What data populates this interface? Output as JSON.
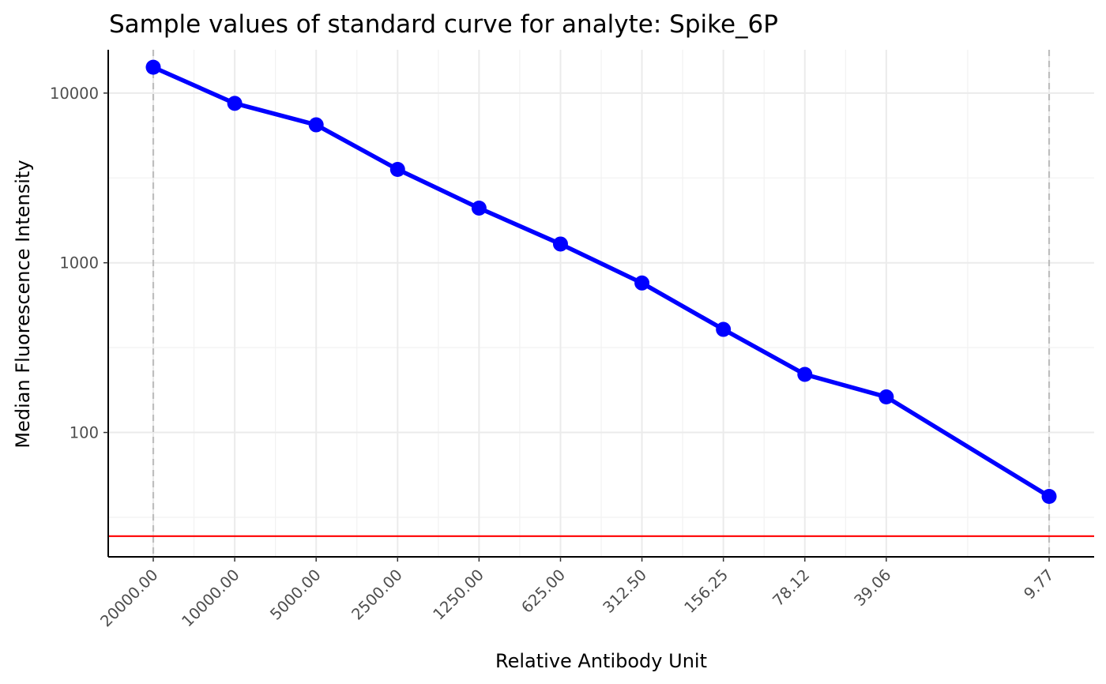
{
  "chart_data": {
    "type": "line",
    "title": "Sample values of standard curve for analyte: Spike_6P",
    "xlabel": "Relative Antibody Unit",
    "ylabel": "Median Fluorescence Intensity",
    "x_scale": "log10",
    "x_reversed": true,
    "y_scale": "log10",
    "x": [
      20000.0,
      10000.0,
      5000.0,
      2500.0,
      1250.0,
      625.0,
      312.5,
      156.25,
      78.12,
      39.06,
      9.77
    ],
    "x_tick_labels": [
      "20000.00",
      "10000.00",
      "5000.00",
      "2500.00",
      "1250.00",
      "625.00",
      "312.50",
      "156.25",
      "78.12",
      "39.06",
      "9.77"
    ],
    "y_ticks": [
      100,
      1000,
      10000
    ],
    "y_tick_labels": [
      "100",
      "1000",
      "10000"
    ],
    "ylim": [
      18.5,
      18000
    ],
    "series": [
      {
        "values": [
          14200,
          8700,
          6500,
          3550,
          2100,
          1290,
          760,
          405,
          220,
          162,
          42
        ],
        "color": "#0000FF"
      }
    ],
    "hline": {
      "y": 24.5,
      "color": "#FF0000"
    },
    "vlines": {
      "x": [
        20000.0,
        9.77
      ],
      "color": "#BEBEBE",
      "style": "dashed"
    },
    "grid": true
  }
}
